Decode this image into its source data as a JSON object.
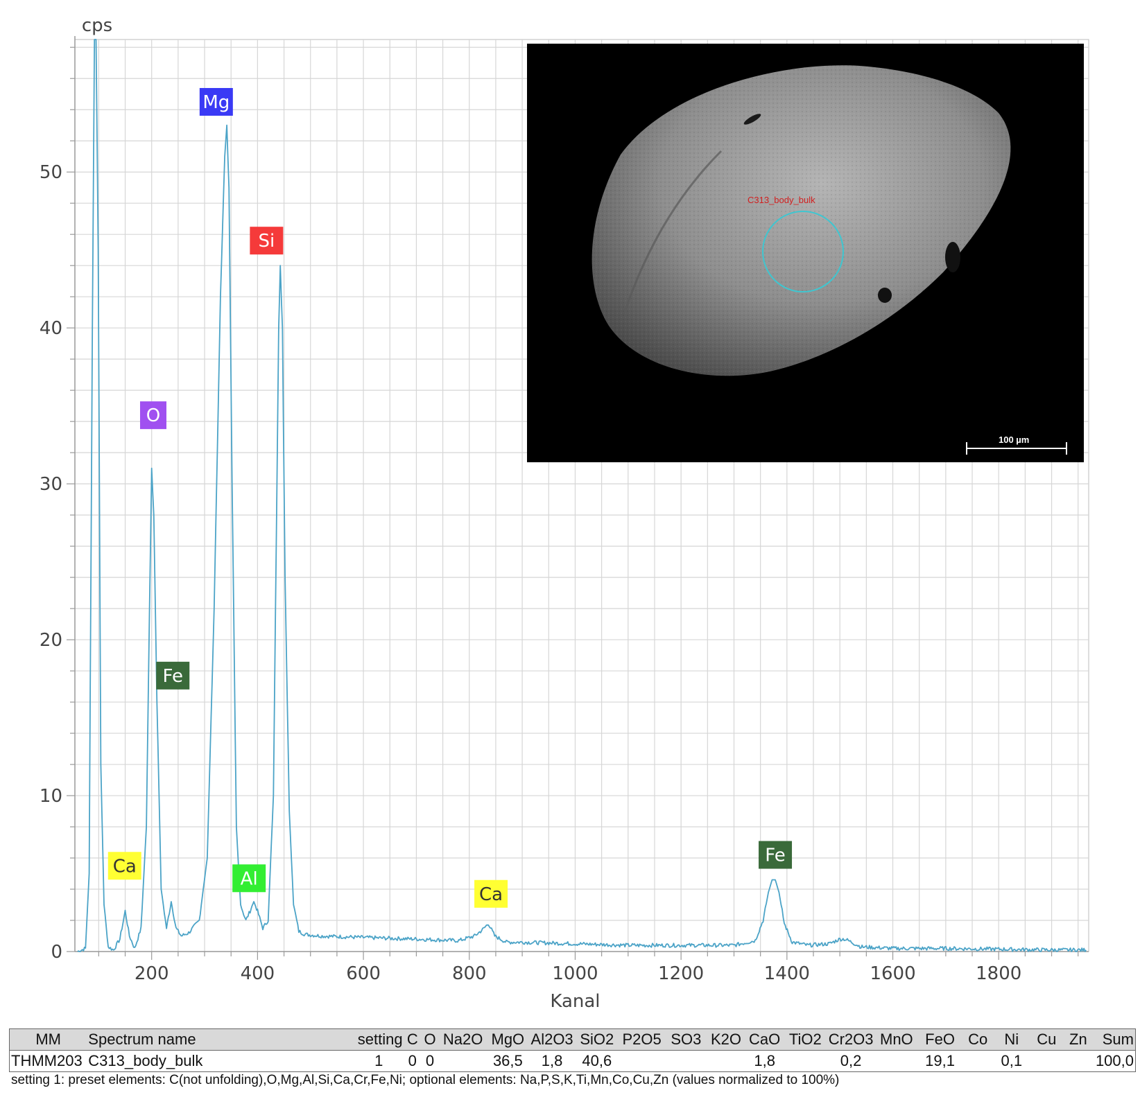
{
  "chart_data": {
    "type": "line",
    "ylabel": "cps",
    "xlabel": "Kanal",
    "xlim": [
      55,
      1970
    ],
    "ylim": [
      0,
      58.5
    ],
    "x_ticks": [
      200,
      400,
      600,
      800,
      1000,
      1200,
      1400,
      1600,
      1800
    ],
    "x_tick_labels": [
      "200",
      "400",
      "600",
      "800",
      "1000",
      "1200",
      "1400",
      "1600",
      "1800"
    ],
    "y_ticks": [
      0,
      10,
      20,
      30,
      40,
      50
    ],
    "y_tick_labels": [
      "0",
      "10",
      "20",
      "30",
      "40",
      "50"
    ],
    "grid": true,
    "line_color": "#4ba3c7",
    "background": "#d6d6d6",
    "plot_background": "#ffffff",
    "peaks": [
      {
        "x": 95,
        "y": 60,
        "width": 6
      },
      {
        "x": 150,
        "y": 2.6,
        "width": 8
      },
      {
        "x": 200,
        "y": 31,
        "width": 6
      },
      {
        "x": 237,
        "y": 3.2,
        "width": 8
      },
      {
        "x": 342,
        "y": 53,
        "width": 7
      },
      {
        "x": 393,
        "y": 3.2,
        "width": 10
      },
      {
        "x": 443,
        "y": 44,
        "width": 8
      },
      {
        "x": 836,
        "y": 1.8,
        "width": 14
      },
      {
        "x": 1375,
        "y": 4.6,
        "width": 14
      },
      {
        "x": 1508,
        "y": 0.8,
        "width": 25
      }
    ],
    "series": [
      {
        "x": [
          60,
          75,
          82,
          88,
          92,
          95,
          99,
          104,
          110,
          118,
          128,
          140,
          150,
          158,
          168,
          180,
          190,
          196,
          200,
          204,
          210,
          218,
          228,
          237,
          246,
          256,
          270,
          290,
          305,
          318,
          330,
          338,
          342,
          346,
          352,
          360,
          368,
          378,
          386,
          393,
          400,
          410,
          420,
          430,
          436,
          440,
          443,
          447,
          452,
          460,
          468,
          478,
          490,
          520,
          600,
          700,
          780,
          810,
          825,
          836,
          848,
          870,
          900,
          1000,
          1100,
          1200,
          1300,
          1340,
          1355,
          1365,
          1372,
          1378,
          1385,
          1395,
          1410,
          1440,
          1480,
          1500,
          1508,
          1516,
          1540,
          1600,
          1700,
          1800,
          1900,
          1965
        ],
        "y": [
          0.0,
          0.2,
          5.0,
          40.0,
          58.5,
          58.5,
          45.0,
          12.0,
          3.0,
          0.3,
          0.1,
          0.8,
          2.6,
          1.0,
          0.2,
          1.5,
          8.0,
          22.0,
          31.0,
          28.0,
          16.0,
          4.0,
          1.5,
          3.2,
          1.5,
          1.0,
          1.2,
          2.0,
          6.0,
          22.0,
          42.0,
          51.0,
          53.0,
          49.0,
          30.0,
          8.0,
          3.0,
          2.0,
          2.6,
          3.2,
          2.6,
          1.5,
          2.0,
          10.0,
          28.0,
          40.0,
          44.0,
          40.0,
          24.0,
          9.0,
          3.0,
          1.3,
          1.1,
          1.0,
          0.9,
          0.8,
          0.7,
          1.0,
          1.4,
          1.8,
          1.0,
          0.6,
          0.6,
          0.5,
          0.4,
          0.4,
          0.4,
          0.7,
          2.0,
          3.8,
          4.6,
          4.6,
          3.8,
          1.8,
          0.6,
          0.4,
          0.5,
          0.8,
          0.8,
          0.7,
          0.3,
          0.2,
          0.2,
          0.15,
          0.1,
          0.1
        ]
      }
    ],
    "annotations": [
      {
        "text": "Mg",
        "x": 322,
        "y": 54.5,
        "bg": "#3a3af5",
        "fg": "#ffffff"
      },
      {
        "text": "Si",
        "x": 417,
        "y": 45.6,
        "bg": "#f53a3a",
        "fg": "#ffffff"
      },
      {
        "text": "O",
        "x": 203,
        "y": 34.4,
        "bg": "#a050f0",
        "fg": "#ffffff"
      },
      {
        "text": "Fe",
        "x": 240,
        "y": 17.7,
        "bg": "#3a6a3a",
        "fg": "#ffffff"
      },
      {
        "text": "Ca",
        "x": 149,
        "y": 5.5,
        "bg": "#ffff33",
        "fg": "#333333"
      },
      {
        "text": "Al",
        "x": 384,
        "y": 4.7,
        "bg": "#33ee33",
        "fg": "#ffffff"
      },
      {
        "text": "Ca",
        "x": 841,
        "y": 3.7,
        "bg": "#ffff33",
        "fg": "#333333"
      },
      {
        "text": "Fe",
        "x": 1378,
        "y": 6.2,
        "bg": "#3a6a3a",
        "fg": "#ffffff"
      }
    ]
  },
  "sem_image": {
    "region_label": "C313_body_bulk",
    "scale_bar_label": "100 µm",
    "circle_color": "#3fc6d0"
  },
  "table": {
    "headers": [
      "MM",
      "Spectrum name",
      "setting",
      "C",
      "O",
      "Na2O",
      "MgO",
      "Al2O3",
      "SiO2",
      "P2O5",
      "SO3",
      "K2O",
      "CaO",
      "TiO2",
      "Cr2O3",
      "MnO",
      "FeO",
      "Co",
      "Ni",
      "Cu",
      "Zn",
      "Sum"
    ],
    "rows": [
      [
        "THMM203",
        "C313_body_bulk",
        "1",
        "0",
        "0",
        "",
        "36,5",
        "1,8",
        "40,6",
        "",
        "",
        "",
        "1,8",
        "",
        "0,2",
        "",
        "19,1",
        "",
        "0,1",
        "",
        "",
        "100,0"
      ]
    ]
  },
  "footnote": "setting 1: preset elements: C(not unfolding),O,Mg,Al,Si,Ca,Cr,Fe,Ni; optional elements: Na,P,S,K,Ti,Mn,Co,Cu,Zn (values normalized to 100%)"
}
